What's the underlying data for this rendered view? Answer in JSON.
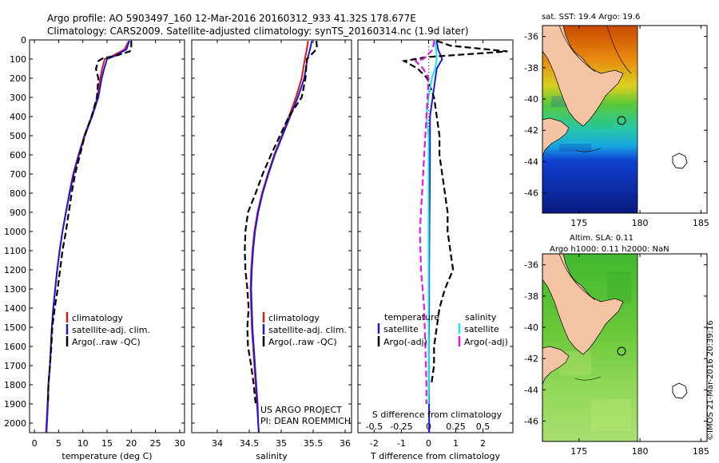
{
  "title_line1": "Argo profile: AO 5903497_160 12-Mar-2016 20160312_933 41.32S 178.677E",
  "title_line2": "Climatology: CARS2009. Satellite-adjusted climatology: synTS_20160314.nc (1.9d later)",
  "credit_line1": "US ARGO PROJECT",
  "credit_line2": "PI: DEAN ROEMMICH",
  "vertical_stamp": "©IMOS 21-Mar-2016 20:39:16",
  "colors": {
    "climatology": "#e01818",
    "satellite": "#1a1adc",
    "argo": "#000000",
    "cyan": "#18e8e8",
    "magenta": "#e018e0",
    "land": "#f4c4a4"
  },
  "chart_data": [
    {
      "type": "line",
      "name": "temperature-profile",
      "xlabel": "temperature (deg C)",
      "ylabel": "",
      "xlim": [
        -1,
        31
      ],
      "ylim": [
        2050,
        0
      ],
      "xticks": [
        0,
        5,
        10,
        15,
        20,
        25,
        30
      ],
      "yticks": [
        0,
        100,
        200,
        300,
        400,
        500,
        600,
        700,
        800,
        900,
        1000,
        1100,
        1200,
        1300,
        1400,
        1500,
        1600,
        1700,
        1800,
        1900,
        2000
      ],
      "legend": [
        "climatology",
        "satellite-adj. clim.",
        "Argo(..raw -QC)"
      ],
      "series": [
        {
          "name": "climatology",
          "style": "solid",
          "color": "#e01818",
          "points": [
            [
              19.5,
              5
            ],
            [
              18.6,
              50
            ],
            [
              16.0,
              85
            ],
            [
              14.5,
              100
            ],
            [
              14.0,
              150
            ],
            [
              13.6,
              200
            ],
            [
              13.0,
              300
            ],
            [
              11.8,
              400
            ],
            [
              10.3,
              500
            ],
            [
              9.1,
              600
            ],
            [
              8.0,
              700
            ],
            [
              7.2,
              800
            ],
            [
              6.5,
              900
            ],
            [
              5.8,
              1000
            ],
            [
              5.2,
              1100
            ],
            [
              4.7,
              1200
            ],
            [
              4.3,
              1300
            ],
            [
              3.9,
              1400
            ],
            [
              3.6,
              1500
            ],
            [
              3.4,
              1600
            ],
            [
              3.2,
              1700
            ],
            [
              2.9,
              1800
            ],
            [
              2.7,
              1900
            ],
            [
              2.5,
              2000
            ],
            [
              2.4,
              2050
            ]
          ]
        },
        {
          "name": "satellite-adj. clim.",
          "style": "solid",
          "color": "#1a1adc",
          "points": [
            [
              19.6,
              5
            ],
            [
              19.0,
              50
            ],
            [
              16.5,
              85
            ],
            [
              15.0,
              100
            ],
            [
              14.4,
              150
            ],
            [
              13.9,
              200
            ],
            [
              13.2,
              300
            ],
            [
              11.9,
              400
            ],
            [
              10.4,
              500
            ],
            [
              9.2,
              600
            ],
            [
              8.1,
              700
            ],
            [
              7.3,
              800
            ],
            [
              6.5,
              900
            ],
            [
              5.8,
              1000
            ],
            [
              5.2,
              1100
            ],
            [
              4.7,
              1200
            ],
            [
              4.3,
              1300
            ],
            [
              3.9,
              1400
            ],
            [
              3.6,
              1500
            ],
            [
              3.4,
              1600
            ],
            [
              3.2,
              1700
            ],
            [
              2.9,
              1800
            ],
            [
              2.8,
              1900
            ],
            [
              2.6,
              2000
            ],
            [
              2.5,
              2050
            ]
          ]
        },
        {
          "name": "Argo(..raw -QC)",
          "style": "dashed",
          "color": "#000000",
          "points": [
            [
              20.0,
              5
            ],
            [
              20.0,
              40
            ],
            [
              19.7,
              60
            ],
            [
              16.5,
              85
            ],
            [
              14.2,
              95
            ],
            [
              13.2,
              110
            ],
            [
              12.7,
              150
            ],
            [
              13.2,
              200
            ],
            [
              12.9,
              300
            ],
            [
              11.8,
              400
            ],
            [
              10.4,
              500
            ],
            [
              9.4,
              600
            ],
            [
              8.4,
              700
            ],
            [
              7.7,
              800
            ],
            [
              7.1,
              900
            ],
            [
              6.5,
              1000
            ],
            [
              5.8,
              1100
            ],
            [
              5.3,
              1200
            ],
            [
              4.8,
              1300
            ],
            [
              4.2,
              1400
            ],
            [
              3.7,
              1500
            ],
            [
              3.5,
              1600
            ],
            [
              3.2,
              1700
            ],
            [
              2.9,
              1800
            ],
            [
              2.8,
              1900
            ]
          ]
        }
      ]
    },
    {
      "type": "line",
      "name": "salinity-profile",
      "xlabel": "salinity",
      "ylabel": "",
      "xlim": [
        33.6,
        36.1
      ],
      "ylim": [
        2050,
        0
      ],
      "xticks": [
        34,
        34.5,
        35,
        35.5,
        36
      ],
      "xtick_labels": [
        "34",
        "34.5",
        "35",
        "35.5",
        "36"
      ],
      "legend": [
        "climatology",
        "satellite-adj. clim.",
        "Argo(..raw -QC)"
      ],
      "series": [
        {
          "name": "climatology",
          "style": "solid",
          "color": "#e01818",
          "points": [
            [
              35.42,
              5
            ],
            [
              35.4,
              50
            ],
            [
              35.37,
              100
            ],
            [
              35.32,
              200
            ],
            [
              35.23,
              300
            ],
            [
              35.12,
              400
            ],
            [
              35.01,
              500
            ],
            [
              34.89,
              600
            ],
            [
              34.79,
              700
            ],
            [
              34.7,
              800
            ],
            [
              34.63,
              900
            ],
            [
              34.58,
              1000
            ],
            [
              34.55,
              1100
            ],
            [
              34.53,
              1200
            ],
            [
              34.52,
              1300
            ],
            [
              34.53,
              1400
            ],
            [
              34.54,
              1500
            ],
            [
              34.56,
              1600
            ],
            [
              34.58,
              1700
            ],
            [
              34.6,
              1800
            ],
            [
              34.62,
              1900
            ],
            [
              34.64,
              2000
            ],
            [
              34.65,
              2050
            ]
          ]
        },
        {
          "name": "satellite-adj. clim.",
          "style": "solid",
          "color": "#1a1adc",
          "points": [
            [
              35.48,
              5
            ],
            [
              35.45,
              50
            ],
            [
              35.41,
              100
            ],
            [
              35.36,
              200
            ],
            [
              35.26,
              300
            ],
            [
              35.14,
              400
            ],
            [
              35.02,
              500
            ],
            [
              34.9,
              600
            ],
            [
              34.8,
              700
            ],
            [
              34.71,
              800
            ],
            [
              34.64,
              900
            ],
            [
              34.59,
              1000
            ],
            [
              34.56,
              1100
            ],
            [
              34.54,
              1200
            ],
            [
              34.53,
              1300
            ],
            [
              34.54,
              1400
            ],
            [
              34.55,
              1500
            ],
            [
              34.57,
              1600
            ],
            [
              34.59,
              1700
            ],
            [
              34.61,
              1800
            ],
            [
              34.63,
              1900
            ],
            [
              34.64,
              2000
            ],
            [
              34.65,
              2050
            ]
          ]
        },
        {
          "name": "Argo(..raw -QC)",
          "style": "dashed",
          "color": "#000000",
          "points": [
            [
              35.55,
              5
            ],
            [
              35.56,
              40
            ],
            [
              35.52,
              60
            ],
            [
              35.4,
              100
            ],
            [
              35.38,
              200
            ],
            [
              35.32,
              300
            ],
            [
              35.12,
              400
            ],
            [
              34.98,
              500
            ],
            [
              34.84,
              600
            ],
            [
              34.71,
              700
            ],
            [
              34.6,
              800
            ],
            [
              34.48,
              900
            ],
            [
              34.44,
              1000
            ],
            [
              34.43,
              1100
            ],
            [
              34.44,
              1200
            ],
            [
              34.47,
              1300
            ],
            [
              34.49,
              1400
            ],
            [
              34.47,
              1500
            ],
            [
              34.48,
              1600
            ],
            [
              34.53,
              1700
            ],
            [
              34.57,
              1800
            ],
            [
              34.6,
              1900
            ]
          ]
        }
      ]
    },
    {
      "type": "line",
      "name": "difference-profile",
      "xlabel": "T difference from climatology",
      "xlabel_top": "S difference from climatology",
      "xlim": [
        -2.6,
        3.1
      ],
      "ylim": [
        2050,
        0
      ],
      "xticks": [
        -2,
        -1,
        0,
        1,
        2
      ],
      "top_ticks": [
        -0.5,
        -0.25,
        0,
        0.25,
        0.5
      ],
      "top_tick_labels": [
        "-0.5",
        "-0.25",
        "0",
        "0.25",
        "0.5"
      ],
      "legend_left_title": "temperature",
      "legend_right_title": "salinity",
      "legend": [
        "satellite",
        "Argo(-adj)",
        "satellite",
        "Argo(-adj)"
      ],
      "series": [
        {
          "name": "satellite",
          "group": "temperature",
          "style": "solid",
          "color": "#1a1adc",
          "points": [
            [
              0.3,
              5
            ],
            [
              0.35,
              50
            ],
            [
              0.5,
              100
            ],
            [
              0.3,
              150
            ],
            [
              0.25,
              200
            ],
            [
              0.15,
              300
            ],
            [
              0.05,
              400
            ],
            [
              0.05,
              500
            ],
            [
              0.05,
              600
            ],
            [
              0.04,
              800
            ],
            [
              0.03,
              1000
            ],
            [
              0.02,
              1200
            ],
            [
              0.02,
              1400
            ],
            [
              0.01,
              1600
            ],
            [
              0.01,
              1800
            ],
            [
              0.02,
              2000
            ],
            [
              0.02,
              2050
            ]
          ]
        },
        {
          "name": "Argo(-adj)",
          "group": "temperature",
          "style": "dashed",
          "color": "#000000",
          "points": [
            [
              0.3,
              5
            ],
            [
              0.8,
              30
            ],
            [
              2.9,
              60
            ],
            [
              0.9,
              80
            ],
            [
              -0.1,
              90
            ],
            [
              -0.9,
              110
            ],
            [
              -0.4,
              150
            ],
            [
              -0.05,
              200
            ],
            [
              0.2,
              300
            ],
            [
              0.3,
              400
            ],
            [
              0.4,
              500
            ],
            [
              0.4,
              600
            ],
            [
              0.5,
              700
            ],
            [
              0.6,
              800
            ],
            [
              0.7,
              900
            ],
            [
              0.7,
              1000
            ],
            [
              0.8,
              1100
            ],
            [
              0.9,
              1200
            ],
            [
              0.6,
              1300
            ],
            [
              0.4,
              1400
            ],
            [
              0.3,
              1500
            ],
            [
              0.2,
              1600
            ],
            [
              0.2,
              1700
            ],
            [
              0.1,
              1800
            ]
          ]
        },
        {
          "name": "satellite",
          "group": "salinity",
          "style": "solid",
          "color": "#18e8e8",
          "points": [
            [
              0.06,
              5
            ],
            [
              0.07,
              50
            ],
            [
              0.075,
              100
            ],
            [
              0.06,
              150
            ],
            [
              0.03,
              200
            ],
            [
              0.0,
              300
            ],
            [
              -0.02,
              400
            ],
            [
              0.0,
              500
            ],
            [
              0.0,
              700
            ],
            [
              0.0,
              1000
            ],
            [
              0.0,
              1300
            ],
            [
              0.0,
              1600
            ],
            [
              0.0,
              1800
            ],
            [
              0.0,
              1900
            ]
          ]
        },
        {
          "name": "Argo(-adj)",
          "group": "salinity",
          "style": "dashed",
          "color": "#e018e0",
          "points": [
            [
              0.05,
              5
            ],
            [
              0.04,
              50
            ],
            [
              -0.05,
              100
            ],
            [
              -0.12,
              110
            ],
            [
              -0.05,
              150
            ],
            [
              0.0,
              200
            ],
            [
              -0.02,
              400
            ],
            [
              -0.04,
              600
            ],
            [
              -0.06,
              800
            ],
            [
              -0.08,
              1000
            ],
            [
              -0.07,
              1200
            ],
            [
              -0.04,
              1400
            ],
            [
              -0.03,
              1600
            ],
            [
              -0.02,
              1800
            ],
            [
              -0.02,
              1900
            ]
          ]
        }
      ]
    },
    {
      "type": "heatmap",
      "name": "sst-map",
      "title": "sat. SST: 19.4  Argo: 19.6",
      "xlim": [
        172,
        185.5
      ],
      "ylim": [
        -47.3,
        -35.3
      ],
      "xticks": [
        175,
        180,
        185
      ],
      "yticks": [
        -36,
        -38,
        -40,
        -42,
        -44,
        -46
      ]
    },
    {
      "type": "heatmap",
      "name": "sla-map",
      "title_line1": "Altim. SLA: 0.11",
      "title_line2": "Argo h1000: 0.11  h2000: NaN",
      "xlim": [
        172,
        185.5
      ],
      "ylim": [
        -47.3,
        -35.3
      ],
      "xticks": [
        175,
        180,
        185
      ],
      "yticks": [
        -36,
        -38,
        -40,
        -42,
        -44,
        -46
      ]
    }
  ]
}
